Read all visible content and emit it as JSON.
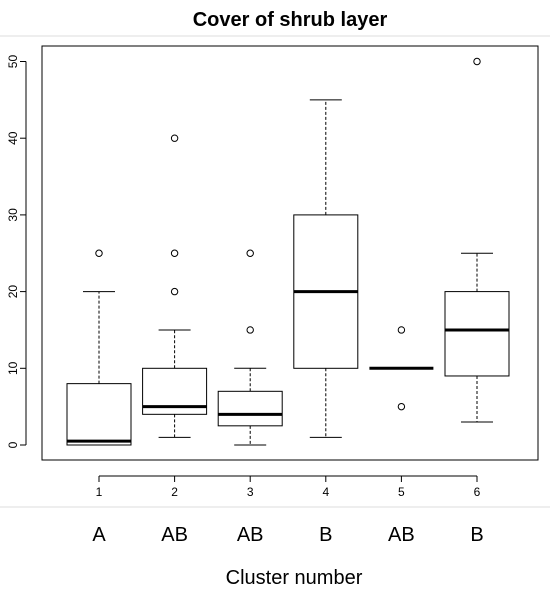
{
  "chart_data": {
    "type": "box",
    "title": "Cover of shrub layer",
    "xlabel": "Cluster number",
    "ylabel": "",
    "ylim": [
      0,
      50
    ],
    "yticks": [
      "0",
      "10",
      "20",
      "30",
      "40",
      "50"
    ],
    "categories": [
      "1",
      "2",
      "3",
      "4",
      "5",
      "6"
    ],
    "group_letters": [
      "A",
      "AB",
      "AB",
      "B",
      "AB",
      "B"
    ],
    "boxes": [
      {
        "category": "1",
        "whisker_low": 0,
        "q1": 0,
        "median": 0.5,
        "q3": 8,
        "whisker_high": 20,
        "outliers": [
          25
        ]
      },
      {
        "category": "2",
        "whisker_low": 1,
        "q1": 4,
        "median": 5,
        "q3": 10,
        "whisker_high": 15,
        "outliers": [
          20,
          25,
          40
        ]
      },
      {
        "category": "3",
        "whisker_low": 0,
        "q1": 2.5,
        "median": 4,
        "q3": 7,
        "whisker_high": 10,
        "outliers": [
          15,
          25
        ]
      },
      {
        "category": "4",
        "whisker_low": 1,
        "q1": 10,
        "median": 20,
        "q3": 30,
        "whisker_high": 45,
        "outliers": []
      },
      {
        "category": "5",
        "whisker_low": 10,
        "q1": 10,
        "median": 10,
        "q3": 10,
        "whisker_high": 10,
        "outliers": [
          5,
          15
        ]
      },
      {
        "category": "6",
        "whisker_low": 3,
        "q1": 9,
        "median": 15,
        "q3": 20,
        "whisker_high": 25,
        "outliers": [
          50
        ]
      }
    ],
    "grid": false,
    "colors": {
      "box_fill": "#ffffff",
      "stroke": "#000000",
      "separator": "#dddddd"
    }
  }
}
